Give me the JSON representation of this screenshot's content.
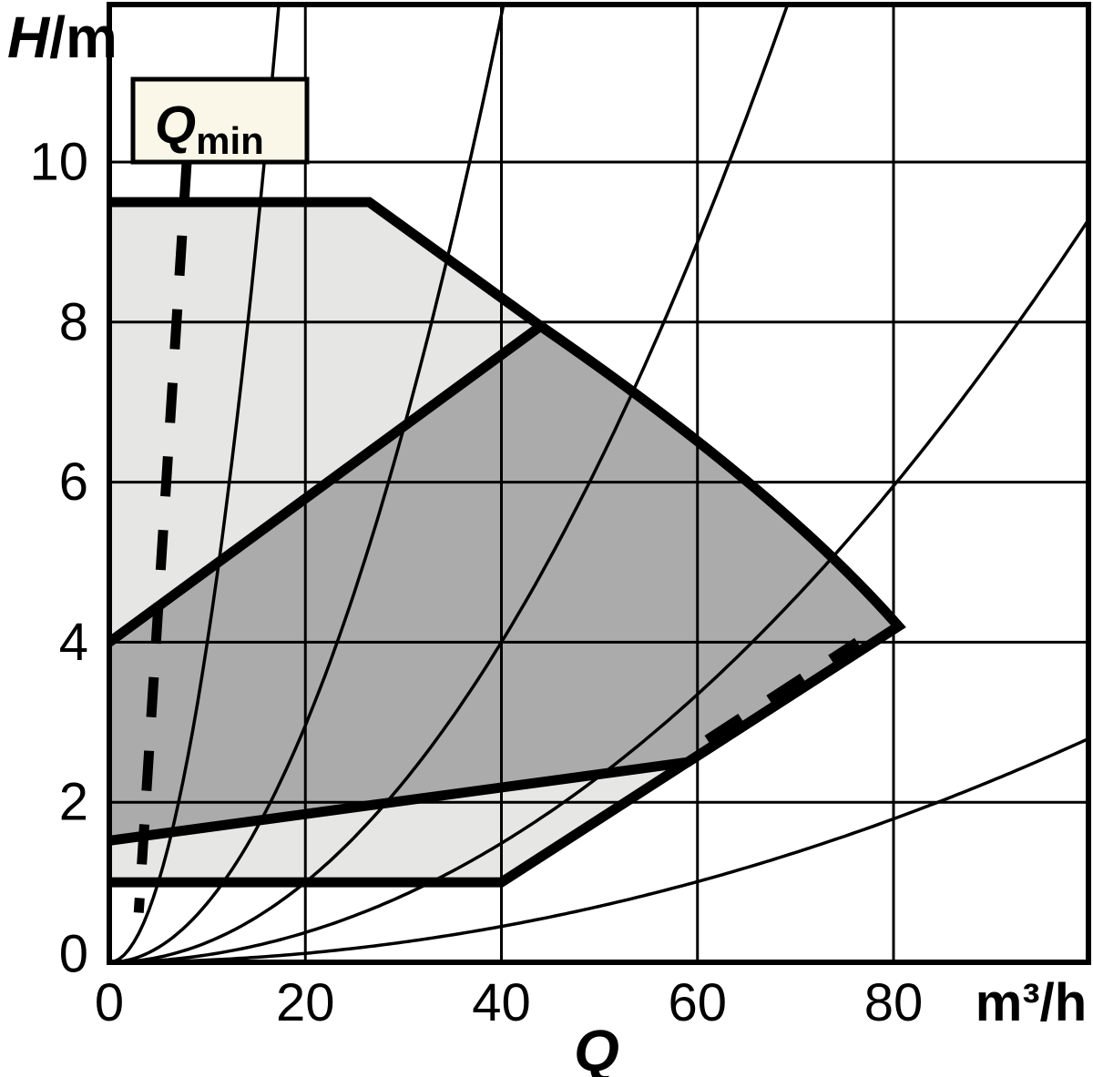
{
  "y_axis": {
    "label_main": "H",
    "label_unit": "/m",
    "ticks": [
      "0",
      "2",
      "4",
      "6",
      "8",
      "10"
    ]
  },
  "x_axis": {
    "label": "Q",
    "unit": "m³/h",
    "ticks": [
      "0",
      "20",
      "40",
      "60",
      "80"
    ]
  },
  "qmin_box": {
    "main": "Q",
    "sub": "min"
  },
  "colors": {
    "light_region": "#e6e6e5",
    "dark_region": "#ababab",
    "qmin_box_fill": "#faf7e8",
    "line": "#000000"
  },
  "chart_data": {
    "type": "area",
    "title": "Pump duty range: head H versus flow Q",
    "xlabel": "Q",
    "x_unit": "m³/h",
    "ylabel": "H/m",
    "xlim": [
      0,
      100
    ],
    "ylim": [
      0,
      12
    ],
    "grid": true,
    "x_gridlines": [
      20,
      40,
      60,
      80
    ],
    "y_gridlines": [
      2,
      4,
      6,
      8,
      10
    ],
    "regions": [
      {
        "name": "max-speed-envelope",
        "fill_key": "light_region",
        "outline": [
          {
            "cmd": "M",
            "p": [
              0,
              9.5
            ]
          },
          {
            "cmd": "L",
            "p": [
              26.5,
              9.5
            ]
          },
          {
            "cmd": "L",
            "p": [
              44,
              7.95
            ]
          },
          {
            "cmd": "Q",
            "c": [
              68.3,
              5.9
            ],
            "p": [
              80.5,
              4.2
            ]
          },
          {
            "cmd": "L",
            "p": [
              40,
              1
            ]
          },
          {
            "cmd": "L",
            "p": [
              0,
              1
            ]
          }
        ]
      },
      {
        "name": "control-range",
        "fill_key": "dark_region",
        "outline": [
          {
            "cmd": "M",
            "p": [
              0,
              4
            ]
          },
          {
            "cmd": "L",
            "p": [
              44,
              7.95
            ]
          },
          {
            "cmd": "Q",
            "c": [
              68.3,
              5.9
            ],
            "p": [
              80.5,
              4.2
            ]
          },
          {
            "cmd": "L",
            "p": [
              59,
              2.5
            ]
          },
          {
            "cmd": "L",
            "p": [
              0,
              1.52
            ]
          }
        ]
      }
    ],
    "system_curves": {
      "model": "H = k · Q²",
      "k_values": [
        0.04,
        0.0074,
        0.0025,
        0.00093,
        0.00028
      ]
    },
    "qmin_lines": [
      {
        "name": "qmin-limit-left",
        "from": [
          7.9,
          10.0
        ],
        "to": [
          3.0,
          0.62
        ]
      },
      {
        "name": "qmin-limit-right",
        "from": [
          61.0,
          2.78
        ],
        "to": [
          76.3,
          4.0
        ]
      }
    ]
  }
}
